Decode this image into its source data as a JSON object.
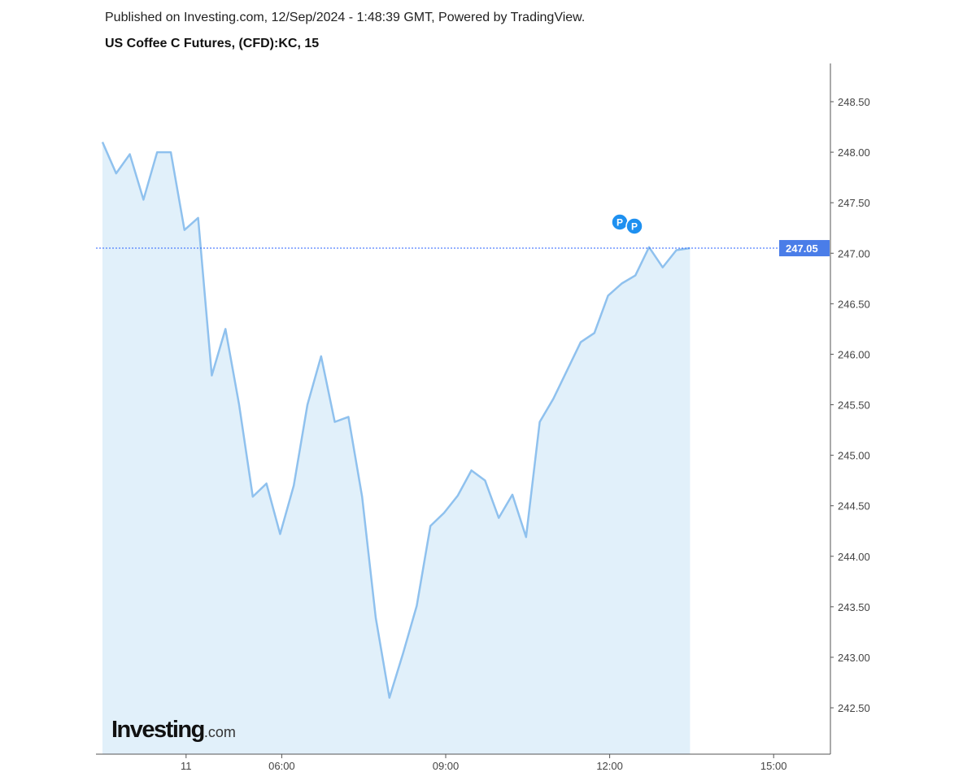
{
  "header": {
    "published": "Published on Investing.com, 12/Sep/2024 - 1:48:39 GMT, Powered by TradingView.",
    "title": "US Coffee C Futures, (CFD):KC, 15"
  },
  "logo": {
    "text": "Investing",
    "suffix": ".com"
  },
  "chart_data": {
    "type": "area",
    "title": "US Coffee C Futures, (CFD):KC, 15",
    "interval_minutes": 15,
    "values": [
      248.1,
      247.79,
      247.98,
      247.53,
      248.0,
      248.0,
      247.23,
      247.35,
      245.79,
      246.25,
      245.5,
      244.59,
      244.72,
      244.22,
      244.7,
      245.5,
      245.98,
      245.33,
      245.38,
      244.59,
      243.39,
      242.6,
      243.04,
      243.51,
      244.3,
      244.43,
      244.6,
      244.85,
      244.75,
      244.38,
      244.61,
      244.19,
      245.33,
      245.56,
      245.84,
      246.12,
      246.21,
      246.58,
      246.7,
      246.78,
      247.06,
      246.86,
      247.03,
      247.05
    ],
    "x_ticks": [
      {
        "label": "11",
        "index": 6
      },
      {
        "label": "06:00",
        "index": 13
      },
      {
        "label": "09:00",
        "index": 25
      },
      {
        "label": "12:00",
        "index": 37
      },
      {
        "label": "15:00",
        "index": 49
      }
    ],
    "y_ticks": [
      "248.50",
      "248.00",
      "247.50",
      "247.00",
      "246.50",
      "246.00",
      "245.50",
      "245.00",
      "244.50",
      "244.00",
      "243.50",
      "243.00",
      "242.50"
    ],
    "ylim": [
      242.0,
      248.9
    ],
    "last_price": "247.05",
    "markers": [
      {
        "label": "P"
      },
      {
        "label": "P"
      }
    ],
    "colors": {
      "line": "#8fc1ee",
      "fill": "#e1f0fa",
      "price_line": "#2962ff",
      "price_label": "#4a7de8",
      "marker": "#1e90f0"
    },
    "grid": false
  }
}
